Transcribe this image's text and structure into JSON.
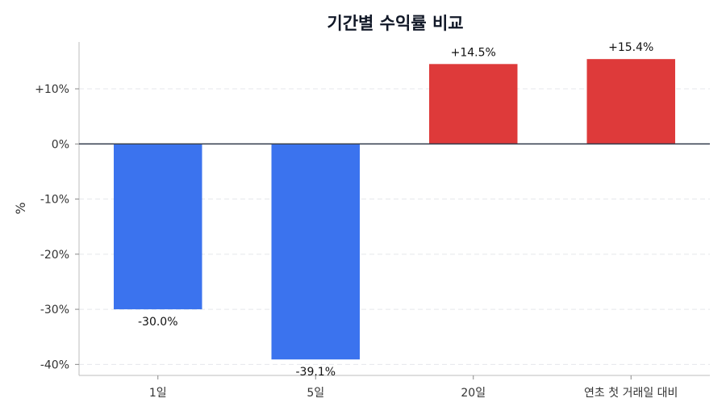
{
  "chart_data": {
    "type": "bar",
    "title": "기간별 수익률 비교",
    "xlabel": "",
    "ylabel": "%",
    "categories": [
      "1일",
      "5일",
      "20일",
      "연초 첫 거래일 대비"
    ],
    "values": [
      -30.0,
      -39.1,
      14.5,
      15.4
    ],
    "data_labels": [
      "-30.0%",
      "-39.1%",
      "+14.5%",
      "+15.4%"
    ],
    "ylim": [
      -42,
      18.5
    ],
    "yticks": [
      10,
      0,
      -10,
      -20,
      -30,
      -40
    ],
    "ytick_labels": [
      "+10%",
      "0%",
      "-10%",
      "-20%",
      "-30%",
      "-40%"
    ],
    "grid": true,
    "colors": {
      "negative": "#3b73ee",
      "positive": "#de3a3a",
      "zero_line": "#374151",
      "grid": "#e5e7eb",
      "axis": "#bdbdbd"
    }
  }
}
